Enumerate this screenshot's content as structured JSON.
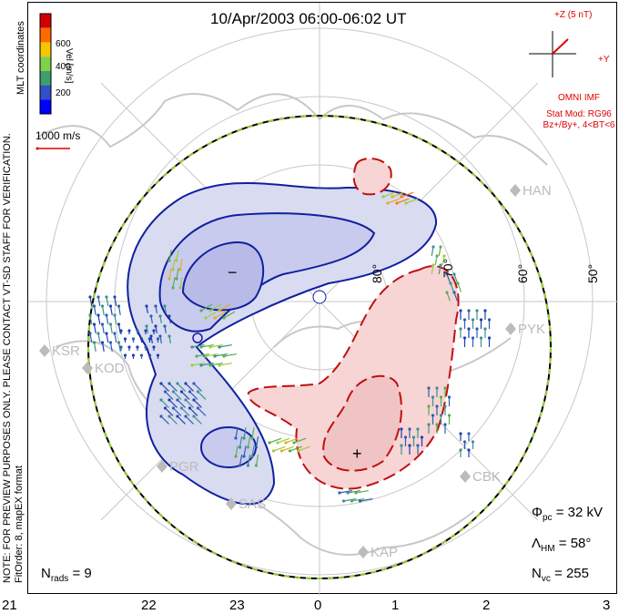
{
  "title": "10/Apr/2003 06:00-06:02 UT",
  "side_note": "NOTE: FOR PREVIEW PURPOSES ONLY. PLEASE CONTACT VT-SD STAFF FOR VERIFICATION.",
  "fit_note": "FitOrder: 8, mapEX format",
  "coord_label": "MLT coordinates",
  "colorbar": {
    "label": "Vel [m/s]",
    "ticks": [
      "600",
      "400",
      "200"
    ],
    "colors": [
      "#d00000",
      "#ff6a00",
      "#f7c600",
      "#7fd14a",
      "#3f9e6b",
      "#3050c8",
      "#0000ff"
    ]
  },
  "scale_vector": "1000 m/s",
  "imf": {
    "z_label": "+Z (5 nT)",
    "y_label": "+Y",
    "source": "OMNI IMF",
    "model_line1": "Stat Mod: RG96",
    "model_line2": "Bz+/By+, 4<BT<6"
  },
  "stats": {
    "phi_symbol": "Φ",
    "phi_sub": "pc",
    "phi_value": "= 32 kV",
    "lambda_symbol": "Λ",
    "lambda_sub": "HM",
    "lambda_value": "= 58°",
    "nvc_symbol": "N",
    "nvc_sub": "vc",
    "nvc_value": "= 255",
    "nrads_symbol": "N",
    "nrads_sub": "rads",
    "nrads_value": "= 9"
  },
  "mlt_labels": [
    "21",
    "22",
    "23",
    "0",
    "1",
    "2",
    "3"
  ],
  "lat_labels": [
    "80°",
    "70°",
    "60°",
    "50°"
  ],
  "sites": [
    "HAN",
    "PYK",
    "KSR",
    "KOD",
    "PGR",
    "SAS",
    "KAP",
    "CBK"
  ],
  "cell_markers": {
    "min": "−",
    "max": "+"
  },
  "colors": {
    "neg_fill": "#d9dbf0",
    "neg_fill_dark": "#b8bbe8",
    "neg_line": "#1020a0",
    "pos_fill": "#f7d5d5",
    "pos_line": "#c01010",
    "land": "#c8c8c8",
    "grid": "#c8c8c8"
  }
}
